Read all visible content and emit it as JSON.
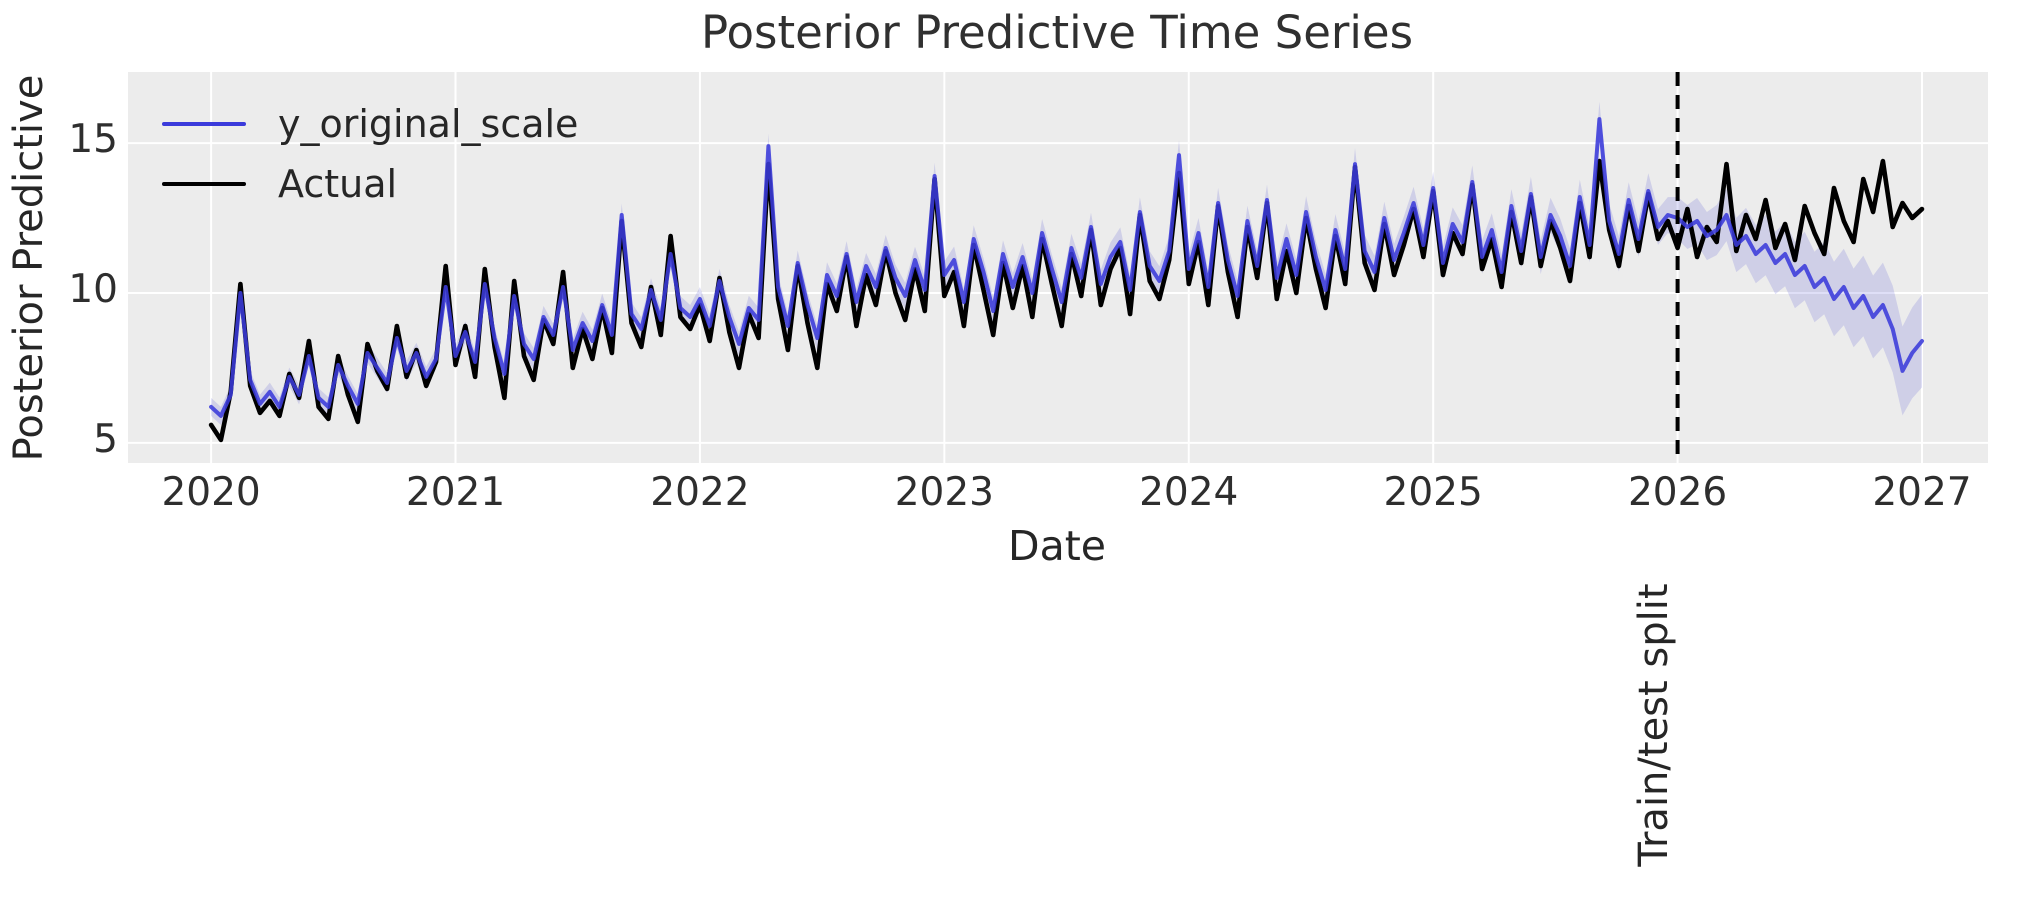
{
  "chart_data": {
    "type": "line",
    "title": "Posterior Predictive Time Series",
    "xlabel": "Date",
    "ylabel": "Posterior Predictive",
    "x_tick_labels": [
      "2020",
      "2021",
      "2022",
      "2023",
      "2024",
      "2025",
      "2026",
      "2027"
    ],
    "x_ticks": [
      2020,
      2021,
      2022,
      2023,
      2024,
      2025,
      2026,
      2027
    ],
    "y_tick_labels": [
      "5",
      "10",
      "15"
    ],
    "y_ticks": [
      5,
      10,
      15
    ],
    "xlim": [
      2019.66,
      2027.27
    ],
    "ylim": [
      4.33,
      17.37
    ],
    "grid": true,
    "legend_position": "upper-left",
    "colors": {
      "plot_background": "#ececec",
      "gridline": "#ffffff",
      "text": "#262626",
      "predicted_line": "#3b3bdb",
      "actual_line": "#000000",
      "band_fill": "#5050d2",
      "vline": "#000000"
    },
    "x_start": 2020.0,
    "x_step": 0.04,
    "series": [
      {
        "name": "y_original_scale",
        "color": "#3b3bdb",
        "width": 4,
        "values": [
          6.2,
          5.9,
          6.6,
          10.0,
          7.1,
          6.3,
          6.7,
          6.2,
          7.2,
          6.6,
          7.9,
          6.5,
          6.2,
          7.6,
          6.9,
          6.3,
          8.0,
          7.5,
          7.0,
          8.5,
          7.4,
          8.0,
          7.2,
          7.8,
          10.2,
          7.9,
          8.7,
          7.7,
          10.3,
          8.5,
          7.3,
          9.9,
          8.3,
          7.8,
          9.2,
          8.6,
          10.2,
          8.1,
          9.0,
          8.4,
          9.6,
          8.6,
          12.6,
          9.3,
          8.8,
          10.1,
          9.1,
          11.3,
          9.5,
          9.2,
          9.8,
          8.9,
          10.4,
          9.2,
          8.3,
          9.5,
          9.1,
          14.9,
          10.2,
          8.9,
          11.0,
          9.6,
          8.5,
          10.6,
          9.9,
          11.3,
          9.7,
          10.9,
          10.2,
          11.5,
          10.5,
          9.9,
          11.1,
          10.1,
          13.9,
          10.6,
          11.1,
          9.7,
          11.8,
          10.7,
          9.4,
          11.3,
          10.2,
          11.2,
          10.0,
          12.0,
          10.8,
          9.7,
          11.5,
          10.5,
          12.2,
          10.3,
          11.2,
          11.7,
          10.1,
          12.7,
          10.9,
          10.4,
          11.4,
          14.6,
          10.8,
          12.0,
          10.2,
          13.0,
          11.1,
          9.9,
          12.4,
          10.9,
          13.1,
          10.5,
          11.8,
          10.6,
          12.7,
          11.2,
          10.1,
          12.1,
          10.8,
          14.3,
          11.4,
          10.7,
          12.5,
          11.1,
          12.0,
          13.0,
          11.6,
          13.5,
          11.0,
          12.3,
          11.7,
          13.7,
          11.2,
          12.1,
          10.7,
          12.9,
          11.4,
          13.3,
          11.2,
          12.6,
          11.9,
          10.9,
          13.2,
          11.6,
          15.8,
          12.4,
          11.3,
          13.1,
          11.8,
          13.4,
          12.2,
          12.6,
          12.5,
          12.2,
          12.4,
          11.9,
          12.1,
          12.6,
          11.6,
          11.9,
          11.3,
          11.6,
          11.0,
          11.3,
          10.6,
          10.9,
          10.2,
          10.5,
          9.8,
          10.2,
          9.5,
          9.9,
          9.2,
          9.6,
          8.8,
          7.4,
          8.0,
          8.4
        ]
      },
      {
        "name": "Actual",
        "color": "#000000",
        "width": 4.6,
        "values": [
          5.6,
          5.1,
          6.7,
          10.3,
          6.9,
          6.0,
          6.4,
          5.9,
          7.3,
          6.5,
          8.4,
          6.2,
          5.8,
          7.9,
          6.6,
          5.7,
          8.3,
          7.4,
          6.8,
          8.9,
          7.2,
          8.1,
          6.9,
          7.7,
          10.9,
          7.6,
          8.9,
          7.2,
          10.8,
          8.2,
          6.5,
          10.4,
          7.9,
          7.1,
          9.1,
          8.3,
          10.7,
          7.5,
          8.8,
          7.8,
          9.5,
          8.0,
          12.4,
          9.0,
          8.2,
          10.2,
          8.6,
          11.9,
          9.2,
          8.8,
          9.6,
          8.4,
          10.5,
          8.7,
          7.5,
          9.3,
          8.5,
          14.3,
          9.8,
          8.1,
          10.9,
          9.0,
          7.5,
          10.3,
          9.4,
          11.2,
          8.9,
          10.6,
          9.6,
          11.4,
          10.0,
          9.1,
          10.8,
          9.4,
          13.8,
          9.9,
          10.7,
          8.9,
          11.6,
          10.1,
          8.6,
          11.0,
          9.5,
          10.9,
          9.2,
          11.8,
          10.3,
          8.9,
          11.3,
          9.9,
          12.1,
          9.6,
          10.8,
          11.5,
          9.3,
          12.6,
          10.4,
          9.8,
          11.1,
          14.0,
          10.3,
          11.7,
          9.6,
          12.9,
          10.7,
          9.2,
          12.2,
          10.5,
          13.0,
          9.8,
          11.4,
          10.0,
          12.5,
          10.8,
          9.5,
          11.9,
          10.3,
          14.2,
          11.0,
          10.1,
          12.3,
          10.6,
          11.6,
          12.8,
          11.2,
          13.4,
          10.6,
          12.0,
          11.3,
          13.6,
          10.8,
          11.8,
          10.2,
          12.7,
          11.0,
          13.2,
          10.9,
          12.4,
          11.5,
          10.4,
          13.0,
          11.2,
          14.4,
          12.1,
          10.9,
          12.9,
          11.4,
          13.3,
          11.8,
          12.4,
          11.5,
          12.8,
          11.2,
          12.2,
          11.7,
          14.3,
          11.4,
          12.6,
          11.8,
          13.1,
          11.5,
          12.3,
          11.1,
          12.9,
          12.0,
          11.3,
          13.5,
          12.4,
          11.7,
          13.8,
          12.7,
          14.4,
          12.2,
          13.0,
          12.5,
          12.8
        ]
      }
    ],
    "band": {
      "applies_to": "y_original_scale",
      "fill_color": "#5050d2",
      "fill_opacity": 0.18,
      "train_halfwidth_base": 0.3,
      "train_halfwidth_growth_per_year": 0.05,
      "test_halfwidth_base": 0.7,
      "test_halfwidth_growth_per_year": 0.85
    },
    "vline": {
      "x": 2026.0,
      "label": "Train/test split",
      "style": "dashed",
      "color": "#000000"
    }
  }
}
